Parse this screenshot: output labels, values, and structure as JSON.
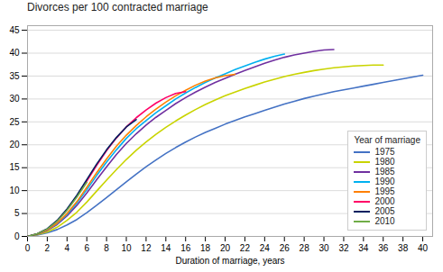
{
  "chart_data": {
    "type": "line",
    "title": "Divorces per 100 contracted marriage",
    "xlabel": "Duration of marriage, years",
    "xlim": [
      0,
      41
    ],
    "ylim": [
      0,
      46
    ],
    "xticks": [
      0,
      2,
      4,
      6,
      8,
      10,
      12,
      14,
      16,
      18,
      20,
      22,
      24,
      26,
      28,
      30,
      32,
      34,
      36,
      38,
      40
    ],
    "yticks": [
      0,
      5,
      10,
      15,
      20,
      25,
      30,
      35,
      40,
      45
    ],
    "grid": "y",
    "legend": "lower right",
    "legend_title": "Year of marriage",
    "series": [
      {
        "name": "1975",
        "color": "#4472c4",
        "x": [
          0,
          1,
          2,
          3,
          4,
          5,
          6,
          7,
          8,
          9,
          10,
          11,
          12,
          13,
          14,
          15,
          16,
          17,
          18,
          19,
          20,
          21,
          22,
          23,
          24,
          25,
          26,
          27,
          28,
          29,
          30,
          31,
          32,
          33,
          34,
          35,
          36,
          37,
          38,
          39,
          40
        ],
        "values": [
          0,
          0.3,
          0.8,
          1.5,
          2.5,
          3.7,
          5.2,
          6.8,
          8.5,
          10.2,
          11.9,
          13.6,
          15.2,
          16.7,
          18.1,
          19.4,
          20.6,
          21.7,
          22.7,
          23.6,
          24.5,
          25.3,
          26.1,
          26.8,
          27.5,
          28.2,
          28.9,
          29.5,
          30.1,
          30.6,
          31.1,
          31.6,
          32.0,
          32.4,
          32.8,
          33.2,
          33.6,
          34.0,
          34.4,
          34.8,
          35.2
        ]
      },
      {
        "name": "1980",
        "color": "#c9d400",
        "x": [
          0,
          1,
          2,
          3,
          4,
          5,
          6,
          7,
          8,
          9,
          10,
          11,
          12,
          13,
          14,
          15,
          16,
          17,
          18,
          19,
          20,
          21,
          22,
          23,
          24,
          25,
          26,
          27,
          28,
          29,
          30,
          31,
          32,
          33,
          34,
          35,
          36
        ],
        "values": [
          0,
          0.4,
          1.0,
          2.0,
          3.5,
          5.3,
          7.5,
          9.9,
          12.3,
          14.6,
          16.8,
          18.8,
          20.6,
          22.3,
          23.8,
          25.2,
          26.5,
          27.7,
          28.8,
          29.8,
          30.7,
          31.5,
          32.3,
          33.0,
          33.7,
          34.3,
          34.9,
          35.4,
          35.8,
          36.2,
          36.5,
          36.8,
          37.0,
          37.2,
          37.3,
          37.4,
          37.4
        ]
      },
      {
        "name": "1985",
        "color": "#7030a0",
        "x": [
          0,
          1,
          2,
          3,
          4,
          5,
          6,
          7,
          8,
          9,
          10,
          11,
          12,
          13,
          14,
          15,
          16,
          17,
          18,
          19,
          20,
          21,
          22,
          23,
          24,
          25,
          26,
          27,
          28,
          29,
          30,
          31
        ],
        "values": [
          0,
          0.5,
          1.3,
          2.6,
          4.5,
          6.8,
          9.5,
          12.4,
          15.2,
          17.9,
          20.3,
          22.4,
          24.3,
          26.0,
          27.5,
          29.0,
          30.3,
          31.5,
          32.6,
          33.6,
          34.5,
          35.4,
          36.2,
          37.0,
          37.8,
          38.5,
          39.1,
          39.6,
          40.0,
          40.4,
          40.7,
          40.8
        ]
      },
      {
        "name": "1990",
        "color": "#00b0f0",
        "x": [
          0,
          1,
          2,
          3,
          4,
          5,
          6,
          7,
          8,
          9,
          10,
          11,
          12,
          13,
          14,
          15,
          16,
          17,
          18,
          19,
          20,
          21,
          22,
          23,
          24,
          25,
          26
        ],
        "values": [
          0,
          0.5,
          1.4,
          2.8,
          4.8,
          7.3,
          10.2,
          13.3,
          16.2,
          18.9,
          21.4,
          23.5,
          25.3,
          27.0,
          28.5,
          30.0,
          31.3,
          32.5,
          33.6,
          34.6,
          35.5,
          36.4,
          37.2,
          38.0,
          38.7,
          39.3,
          39.8
        ]
      },
      {
        "name": "1995",
        "color": "#ff8000",
        "x": [
          0,
          1,
          2,
          3,
          4,
          5,
          6,
          7,
          8,
          9,
          10,
          11,
          12,
          13,
          14,
          15,
          16,
          17,
          18,
          19,
          20,
          21
        ],
        "values": [
          0,
          0.5,
          1.4,
          2.9,
          5.0,
          7.6,
          10.7,
          13.9,
          16.9,
          19.7,
          22.1,
          24.2,
          26.1,
          27.8,
          29.3,
          30.7,
          31.9,
          33.0,
          33.9,
          34.6,
          35.1,
          35.4
        ]
      },
      {
        "name": "2000",
        "color": "#ff0066",
        "x": [
          0,
          1,
          2,
          3,
          4,
          5,
          6,
          7,
          8,
          9,
          10,
          11,
          12,
          13,
          14,
          15,
          16
        ],
        "values": [
          0,
          0.6,
          1.6,
          3.3,
          5.8,
          8.8,
          12.1,
          15.5,
          18.7,
          21.5,
          23.9,
          25.9,
          27.6,
          29.1,
          30.3,
          31.2,
          31.6
        ]
      },
      {
        "name": "2005",
        "color": "#002060",
        "x": [
          0,
          1,
          2,
          3,
          4,
          5,
          6,
          7,
          8,
          9,
          10,
          11
        ],
        "values": [
          0,
          0.6,
          1.7,
          3.5,
          6.0,
          9.0,
          12.4,
          15.8,
          18.9,
          21.6,
          23.9,
          25.5
        ]
      },
      {
        "name": "2010",
        "color": "#70ad47",
        "x": [
          0,
          1,
          2,
          3,
          4,
          5,
          6
        ],
        "values": [
          0,
          0.6,
          1.6,
          3.3,
          5.7,
          8.6,
          11.8
        ]
      }
    ]
  }
}
